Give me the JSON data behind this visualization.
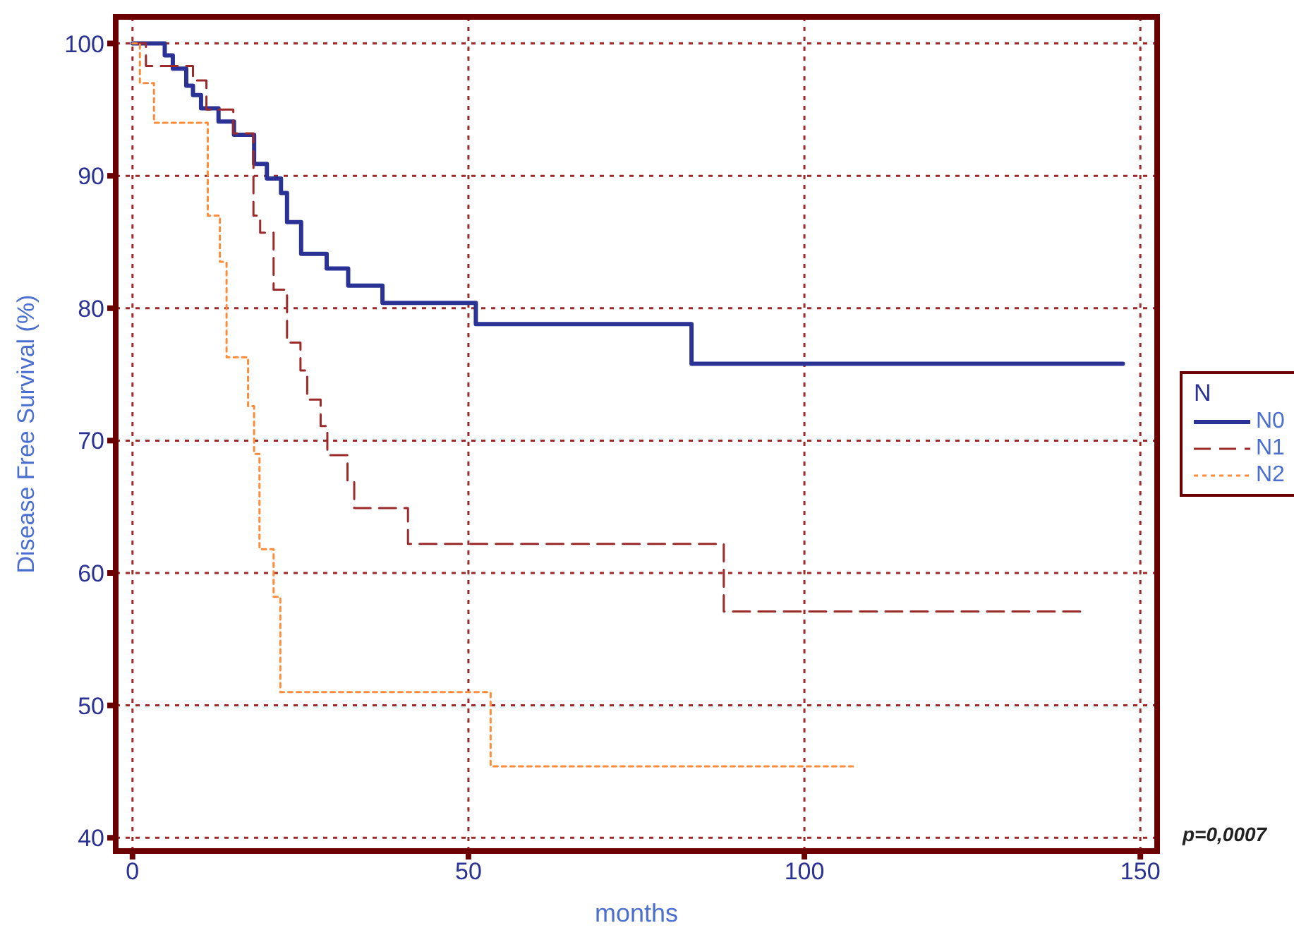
{
  "chart_data": {
    "type": "step",
    "xlabel": "months",
    "ylabel": "Disease Free Survival (%)",
    "legend_title": "N",
    "legend": "right",
    "grid": true,
    "xlim": [
      -2.5,
      152.5
    ],
    "ylim": [
      39,
      102
    ],
    "xticks": [
      0,
      50,
      100,
      150
    ],
    "yticks": [
      40,
      50,
      60,
      70,
      80,
      90,
      100
    ],
    "annotations": [
      "p=0,0007"
    ],
    "series": [
      {
        "name": "N0",
        "color": "#2b3296",
        "line_style": "solid",
        "x": [
          0,
          4.8,
          6,
          8,
          9,
          10.2,
          12.8,
          15.1,
          18.1,
          20,
          22.1,
          23,
          25.1,
          28.9,
          32.1,
          37.2,
          51.1,
          83.2,
          147.4
        ],
        "values": [
          100,
          99.1,
          98.1,
          96.8,
          96.1,
          95.1,
          94.1,
          93.1,
          90.9,
          89.8,
          88.7,
          86.5,
          84.1,
          83,
          81.7,
          80.4,
          78.8,
          75.8,
          75.8
        ]
      },
      {
        "name": "N1",
        "color": "#9b2a2a",
        "line_style": "dashed",
        "x": [
          0,
          2,
          9,
          11,
          15,
          18,
          19,
          21,
          23,
          25,
          26,
          28,
          29,
          32,
          33,
          41,
          88,
          141.3
        ],
        "values": [
          100,
          98.3,
          97.2,
          95,
          93.2,
          87,
          85.7,
          81.4,
          77.4,
          75.3,
          73.1,
          71.1,
          68.9,
          66.9,
          64.9,
          62.2,
          57.1,
          57.1
        ]
      },
      {
        "name": "N2",
        "color": "#ff8c3a",
        "line_style": "dotted",
        "x": [
          0,
          1.1,
          3.2,
          11.2,
          13,
          14,
          17.2,
          18.1,
          18.9,
          21,
          22,
          53.3,
          107.2
        ],
        "values": [
          100,
          97,
          94,
          87,
          83.5,
          76.3,
          72.6,
          69,
          61.8,
          58.2,
          51,
          45.4,
          45.4
        ]
      }
    ]
  }
}
